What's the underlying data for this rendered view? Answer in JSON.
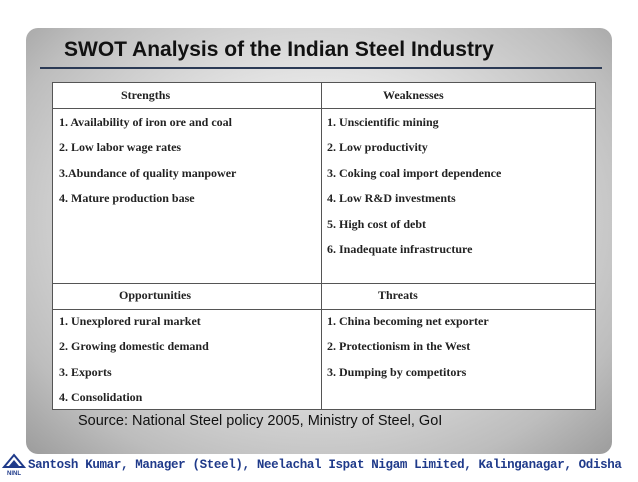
{
  "title": "SWOT Analysis of the Indian Steel Industry",
  "swot": {
    "strengths": {
      "heading": "Strengths",
      "items": [
        "1. Availability of iron ore and coal",
        "2. Low labor wage rates",
        "3.Abundance of quality manpower",
        "4. Mature production base"
      ]
    },
    "weaknesses": {
      "heading": "Weaknesses",
      "items": [
        "1. Unscientific mining",
        "2. Low productivity",
        "3. Coking coal import dependence",
        "4. Low R&D investments",
        "5. High cost of debt",
        "6. Inadequate infrastructure"
      ]
    },
    "opportunities": {
      "heading": "Opportunities",
      "items": [
        "1. Unexplored rural market",
        "2. Growing domestic demand",
        "3. Exports",
        "4. Consolidation"
      ]
    },
    "threats": {
      "heading": "Threats",
      "items": [
        "1. China becoming net exporter",
        "2. Protectionism in the West",
        "3. Dumping by competitors"
      ]
    }
  },
  "source": "Source: National Steel policy 2005, Ministry of Steel, GoI",
  "footer": {
    "text": "Santosh Kumar, Manager (Steel), Neelachal Ispat Nigam Limited, Kalinganagar, Odisha",
    "logo_label": "NINL",
    "color": "#1f3a8a"
  }
}
